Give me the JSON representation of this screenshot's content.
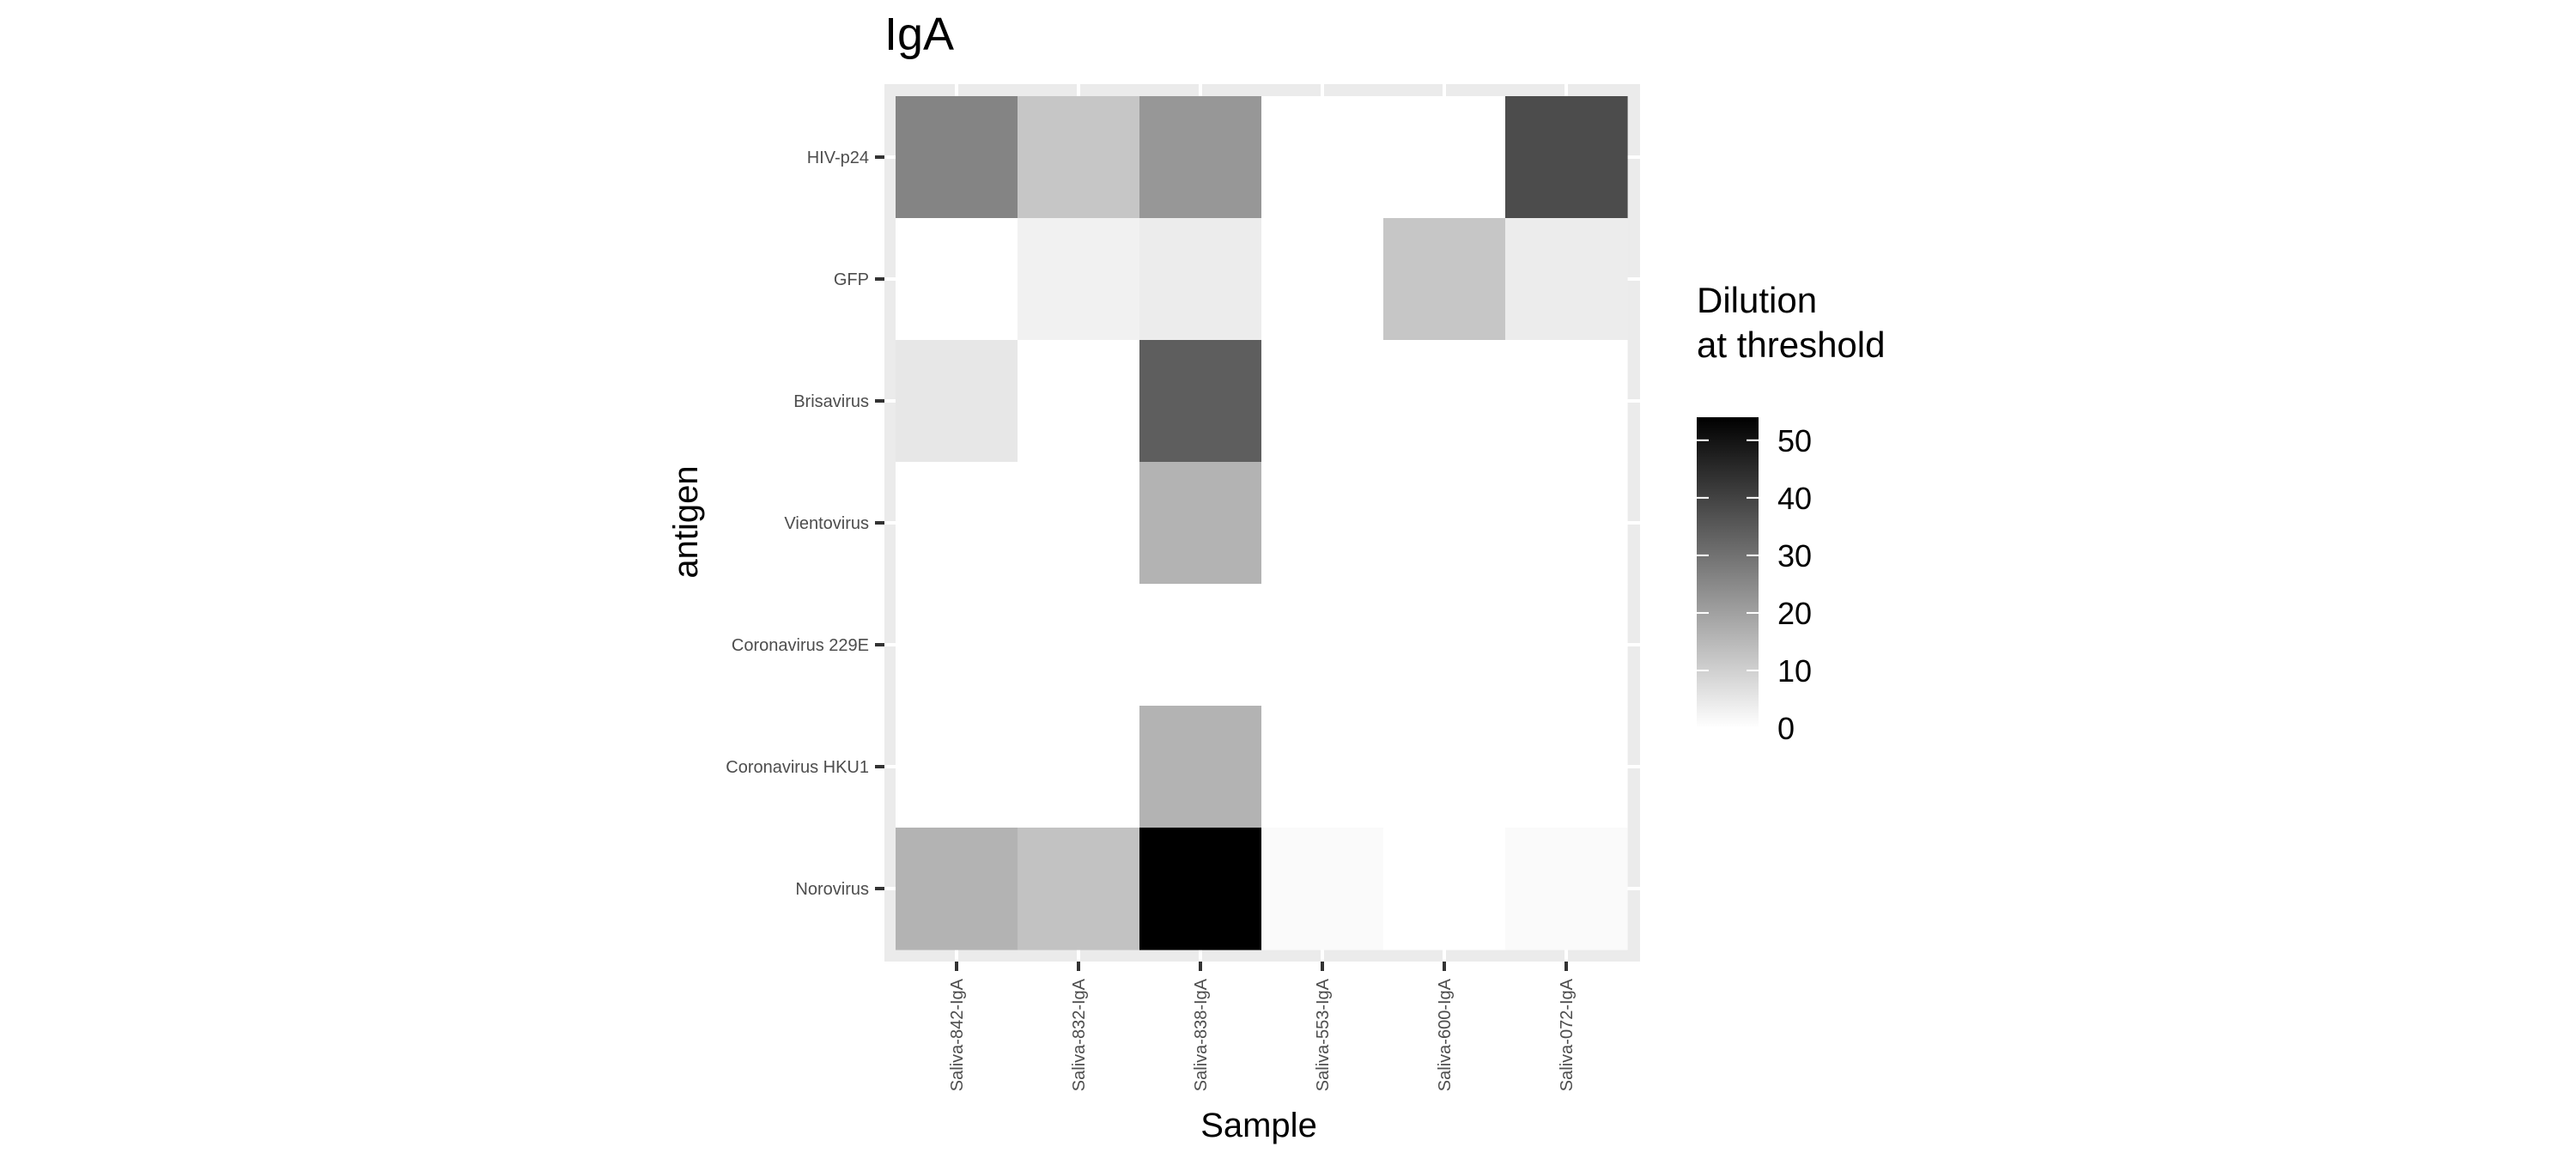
{
  "chart_data": {
    "type": "heatmap",
    "title": "IgA",
    "xlabel": "Sample",
    "ylabel": "antigen",
    "x": [
      "Saliva-842-IgA",
      "Saliva-832-IgA",
      "Saliva-838-IgA",
      "Saliva-553-IgA",
      "Saliva-600-IgA",
      "Saliva-072-IgA"
    ],
    "y": [
      "HIV-p24",
      "GFP",
      "Brisavirus",
      "Vientovirus",
      "Coronavirus 229E",
      "Coronavirus HKU1",
      "Norovirus"
    ],
    "values": [
      [
        26,
        12,
        22,
        0,
        0,
        38
      ],
      [
        0,
        3,
        4,
        0,
        12,
        4
      ],
      [
        5,
        0,
        34,
        0,
        0,
        0
      ],
      [
        0,
        0,
        16,
        0,
        0,
        0
      ],
      [
        0,
        0,
        0,
        0,
        0,
        0
      ],
      [
        0,
        0,
        16,
        0,
        0,
        0
      ],
      [
        16,
        13,
        54,
        1,
        0,
        1
      ]
    ],
    "legend": {
      "title_lines": [
        "Dilution",
        "at threshold"
      ],
      "breaks": [
        0,
        10,
        20,
        30,
        40,
        50
      ],
      "range": [
        0,
        54
      ],
      "position": "right",
      "low_color": "#ffffff",
      "high_color": "#000000"
    },
    "panel_background": "#ebebeb",
    "grid": true
  }
}
